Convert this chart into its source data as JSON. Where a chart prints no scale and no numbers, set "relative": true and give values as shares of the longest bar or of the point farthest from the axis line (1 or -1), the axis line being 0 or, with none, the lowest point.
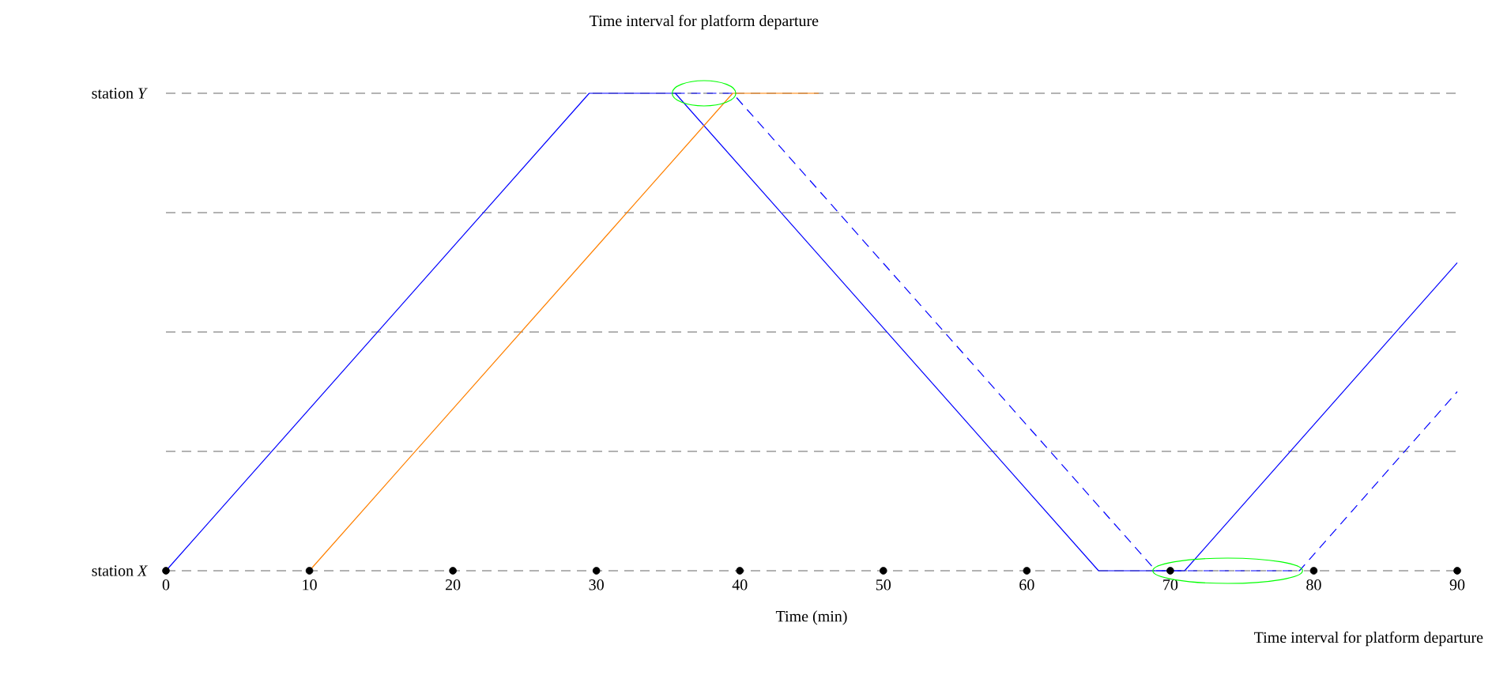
{
  "chart_data": {
    "type": "line",
    "relative": true,
    "xlabel": "Time (min)",
    "xlim": [
      0,
      90
    ],
    "xticks": [
      0,
      10,
      20,
      30,
      40,
      50,
      60,
      70,
      80,
      90
    ],
    "ref_lines": [
      {
        "axis": "y",
        "value": 0,
        "label": "station *X*",
        "line_style": "dashed"
      },
      {
        "axis": "y",
        "value": 0.25,
        "label": null,
        "line_style": "dashed"
      },
      {
        "axis": "y",
        "value": 0.5,
        "label": null,
        "line_style": "dashed"
      },
      {
        "axis": "y",
        "value": 0.75,
        "label": null,
        "line_style": "dashed"
      },
      {
        "axis": "y",
        "value": 1,
        "label": "station *Y*",
        "line_style": "dashed"
      }
    ],
    "series": [
      {
        "color": "#0000ff",
        "line_style": "solid",
        "x": [
          0,
          29.5,
          35.5,
          65,
          71,
          90
        ],
        "values": [
          0,
          1,
          1,
          0,
          0,
          0.645
        ]
      },
      {
        "color": "#0000ff",
        "line_style": "dashed",
        "x": [
          35.5,
          39.5,
          69,
          79,
          90
        ],
        "values": [
          1,
          1,
          0,
          0,
          0.375
        ]
      },
      {
        "color": "#ff8000",
        "line_style": "solid",
        "x": [
          10,
          39.5,
          45.5
        ],
        "values": [
          0,
          1,
          1
        ]
      },
      {
        "type": "scatter",
        "marker": "circle",
        "color": "#000000",
        "x": [
          0,
          10,
          20,
          30,
          40,
          50,
          60,
          70,
          80,
          90
        ],
        "values": [
          0,
          0,
          0,
          0,
          0,
          0,
          0,
          0,
          0,
          0
        ]
      }
    ],
    "annotations": [
      "Time interval for platform departure",
      "Time interval for platform departure"
    ]
  }
}
